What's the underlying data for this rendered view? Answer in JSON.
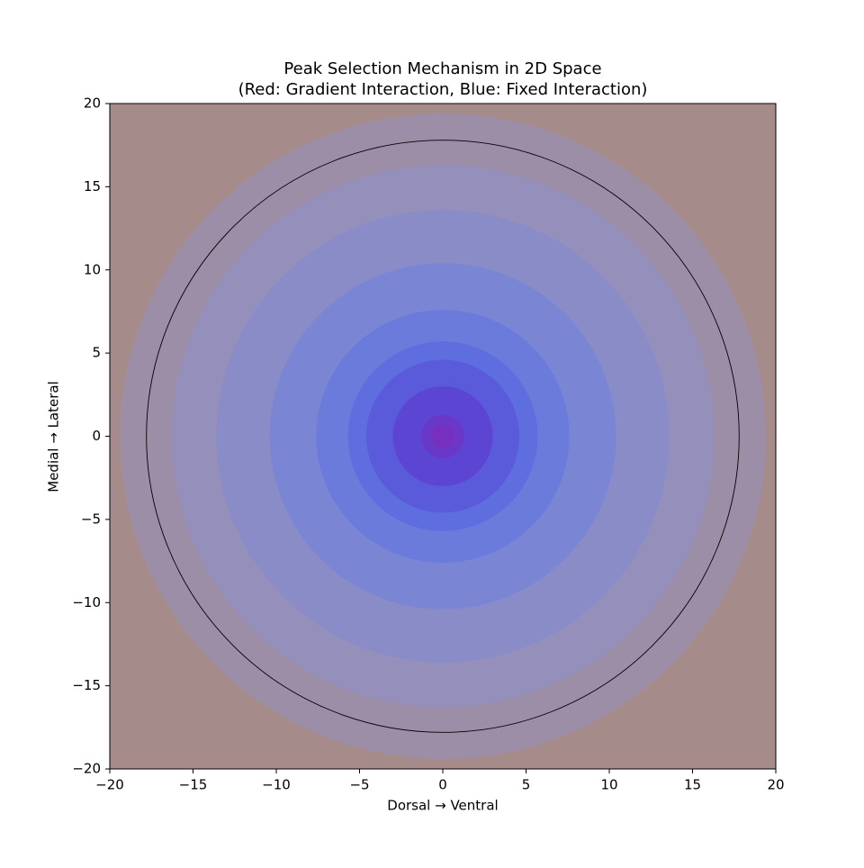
{
  "chart_data": {
    "type": "contour",
    "title": "Peak Selection Mechanism in 2D Space",
    "subtitle": "(Red: Gradient Interaction, Blue: Fixed Interaction)",
    "xlabel": "Dorsal → Ventral",
    "ylabel": "Medial → Lateral",
    "xlim": [
      -20,
      20
    ],
    "ylim": [
      -20,
      20
    ],
    "xticks": [
      {
        "value": -20,
        "label": "−20"
      },
      {
        "value": -15,
        "label": "−15"
      },
      {
        "value": -10,
        "label": "−10"
      },
      {
        "value": -5,
        "label": "−5"
      },
      0,
      5,
      10,
      15,
      20
    ],
    "yticks": [
      {
        "value": -20,
        "label": "−20"
      },
      {
        "value": -15,
        "label": "−15"
      },
      {
        "value": -10,
        "label": "−10"
      },
      {
        "value": -5,
        "label": "−5"
      },
      0,
      5,
      10,
      15,
      20
    ],
    "center": [
      0,
      0
    ],
    "background_color": "#a68b8b",
    "bands": [
      {
        "radius": 19.4,
        "color": "#9d8ea8"
      },
      {
        "radius": 16.3,
        "color": "#958fbb"
      },
      {
        "radius": 13.6,
        "color": "#8a8cc8"
      },
      {
        "radius": 10.4,
        "color": "#7a86d3"
      },
      {
        "radius": 7.6,
        "color": "#6b7bdb"
      },
      {
        "radius": 5.7,
        "color": "#5f6ede"
      },
      {
        "radius": 4.6,
        "color": "#5a5bdb"
      },
      {
        "radius": 3.0,
        "color": "#5d45d4"
      },
      {
        "radius": 1.3,
        "color": "#6a38c8"
      }
    ],
    "inner_color": "#762fbf",
    "circle": {
      "radius": 17.8,
      "color": "#000000"
    }
  }
}
